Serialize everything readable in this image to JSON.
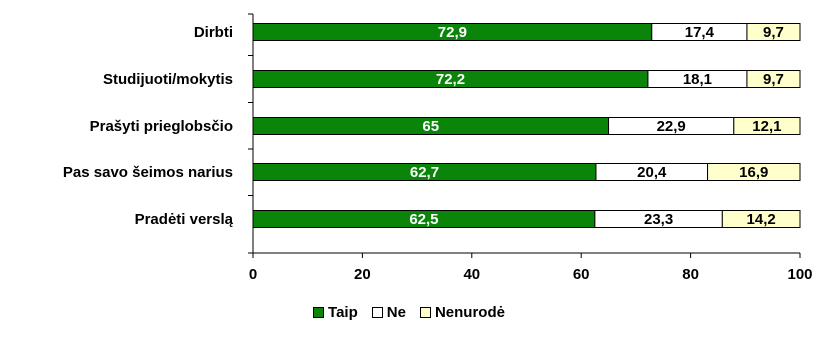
{
  "chart_data": {
    "type": "bar",
    "orientation": "horizontal",
    "stacked": true,
    "categories": [
      "Dirbti",
      "Studijuoti/mokytis",
      "Prašyti prieglobsčio",
      "Pas savo šeimos narius",
      "Pradėti verslą"
    ],
    "series": [
      {
        "name": "Taip",
        "color": "#0a850a",
        "label_color": "#ffffff",
        "values": [
          72.9,
          72.2,
          65,
          62.7,
          62.5
        ]
      },
      {
        "name": "Ne",
        "color": "#ffffff",
        "label_color": "#000000",
        "values": [
          17.4,
          18.1,
          22.9,
          20.4,
          23.3
        ]
      },
      {
        "name": "Nenurodė",
        "color": "#ffffcc",
        "label_color": "#000000",
        "values": [
          9.7,
          9.7,
          12.1,
          16.9,
          14.2
        ]
      }
    ],
    "value_labels": [
      [
        "72,9",
        "72,2",
        "65",
        "62,7",
        "62,5"
      ],
      [
        "17,4",
        "18,1",
        "22,9",
        "20,4",
        "23,3"
      ],
      [
        "9,7",
        "9,7",
        "12,1",
        "16,9",
        "14,2"
      ]
    ],
    "xlim": [
      0,
      100
    ],
    "xticks": [
      0,
      20,
      40,
      60,
      80,
      100
    ],
    "xtick_labels": [
      "0",
      "20",
      "40",
      "60",
      "80",
      "100"
    ],
    "grid": false,
    "legend_position": "bottom",
    "title": "",
    "xlabel": "",
    "ylabel": ""
  }
}
